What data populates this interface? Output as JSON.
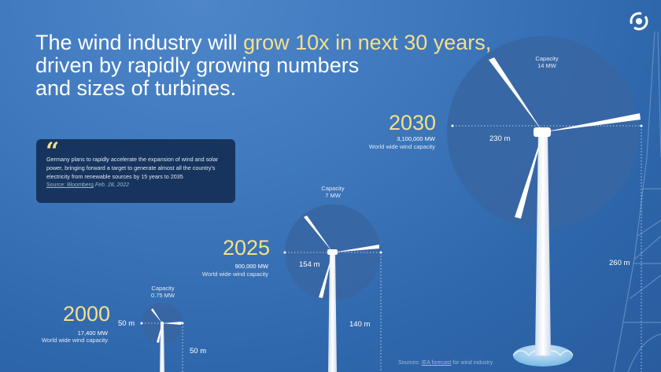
{
  "headline": {
    "part1": "The wind industry will ",
    "highlight": "grow 10x in next 30 years,",
    "line2": "driven by rapidly growing numbers",
    "line3": "and sizes of turbines."
  },
  "quote": {
    "mark": "“",
    "text": "Germany plans to rapidly accelerate the expansion of wind and solar power, bringing forward a target to generate almost all the country's electricity from renewable sources by 15 years to 2035",
    "source_link": "Source: Bloomberg",
    "source_date": "Feb. 28, 2022"
  },
  "turbines": [
    {
      "year": "2000",
      "total_mw": "17,400 MW",
      "total_label": "World wide wind capacity",
      "capacity_label": "Capacity",
      "capacity_value": "0.75 MW",
      "rotor_diameter": "50 m",
      "hub_height": "50 m"
    },
    {
      "year": "2025",
      "total_mw": "900,000 MW",
      "total_label": "World wide wind capacity",
      "capacity_label": "Capacity",
      "capacity_value": "7 MW",
      "rotor_diameter": "154 m",
      "hub_height": "140 m"
    },
    {
      "year": "2030",
      "total_mw": "3,100,000 MW",
      "total_label": "World wide wind capacity",
      "capacity_label": "Capacity",
      "capacity_value": "14 MW",
      "rotor_diameter": "230 m",
      "hub_height": "260 m"
    }
  ],
  "sources": {
    "prefix": "Sources: ",
    "link": "IEA forecast",
    "suffix": " for wind industry"
  },
  "colors": {
    "background": "#3f78bd",
    "highlight": "#f4e08a",
    "quote_box": "#17345e",
    "rotor_disc": "#3a66a0"
  },
  "icons": [
    "logo-icon",
    "quote-icon",
    "eiffel-tower-icon"
  ]
}
